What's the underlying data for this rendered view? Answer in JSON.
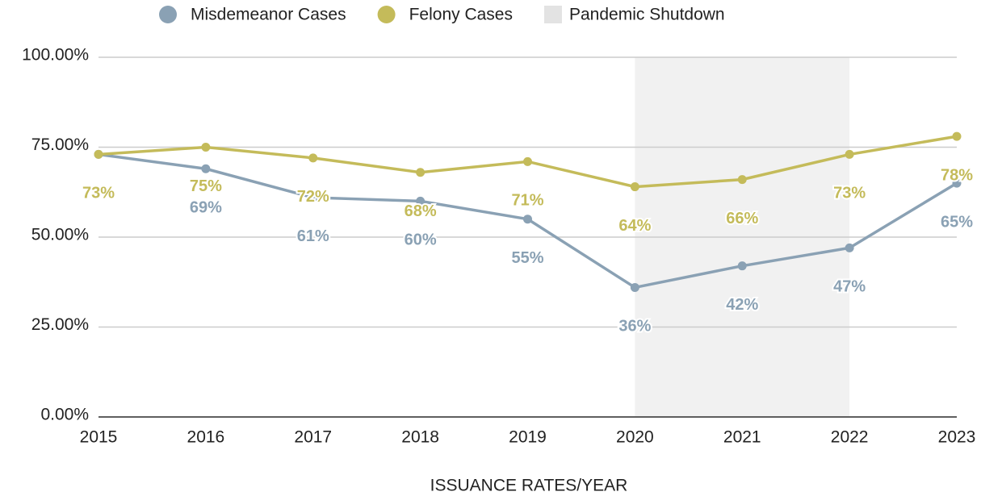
{
  "chart_data": {
    "type": "line",
    "x_label": "ISSUANCE RATES/YEAR",
    "categories": [
      "2015",
      "2016",
      "2017",
      "2018",
      "2019",
      "2020",
      "2021",
      "2022",
      "2023"
    ],
    "series": [
      {
        "name": "Misdemeanor Cases",
        "color": "#8aa1b4",
        "values": [
          73,
          69,
          61,
          60,
          55,
          36,
          42,
          47,
          65
        ],
        "value_labels": [
          null,
          "69%",
          "61%",
          "60%",
          "55%",
          "36%",
          "42%",
          "47%",
          "65%"
        ]
      },
      {
        "name": "Felony Cases",
        "color": "#c4bb5a",
        "values": [
          73,
          75,
          72,
          68,
          71,
          64,
          66,
          73,
          78
        ],
        "value_labels": [
          "73%",
          "75%",
          "72%",
          "68%",
          "71%",
          "64%",
          "66%",
          "73%",
          "78%"
        ]
      }
    ],
    "shaded_region": {
      "name": "Pandemic Shutdown",
      "color": "#f1f1f1",
      "start": "2020",
      "end": "2022"
    },
    "ylim": [
      0,
      100
    ],
    "yticks": [
      {
        "value": 0,
        "label": "0.00%"
      },
      {
        "value": 25,
        "label": "25.00%"
      },
      {
        "value": 50,
        "label": "50.00%"
      },
      {
        "value": 75,
        "label": "75.00%"
      },
      {
        "value": 100,
        "label": "100.00%"
      }
    ],
    "grid": true,
    "legend": "top"
  }
}
